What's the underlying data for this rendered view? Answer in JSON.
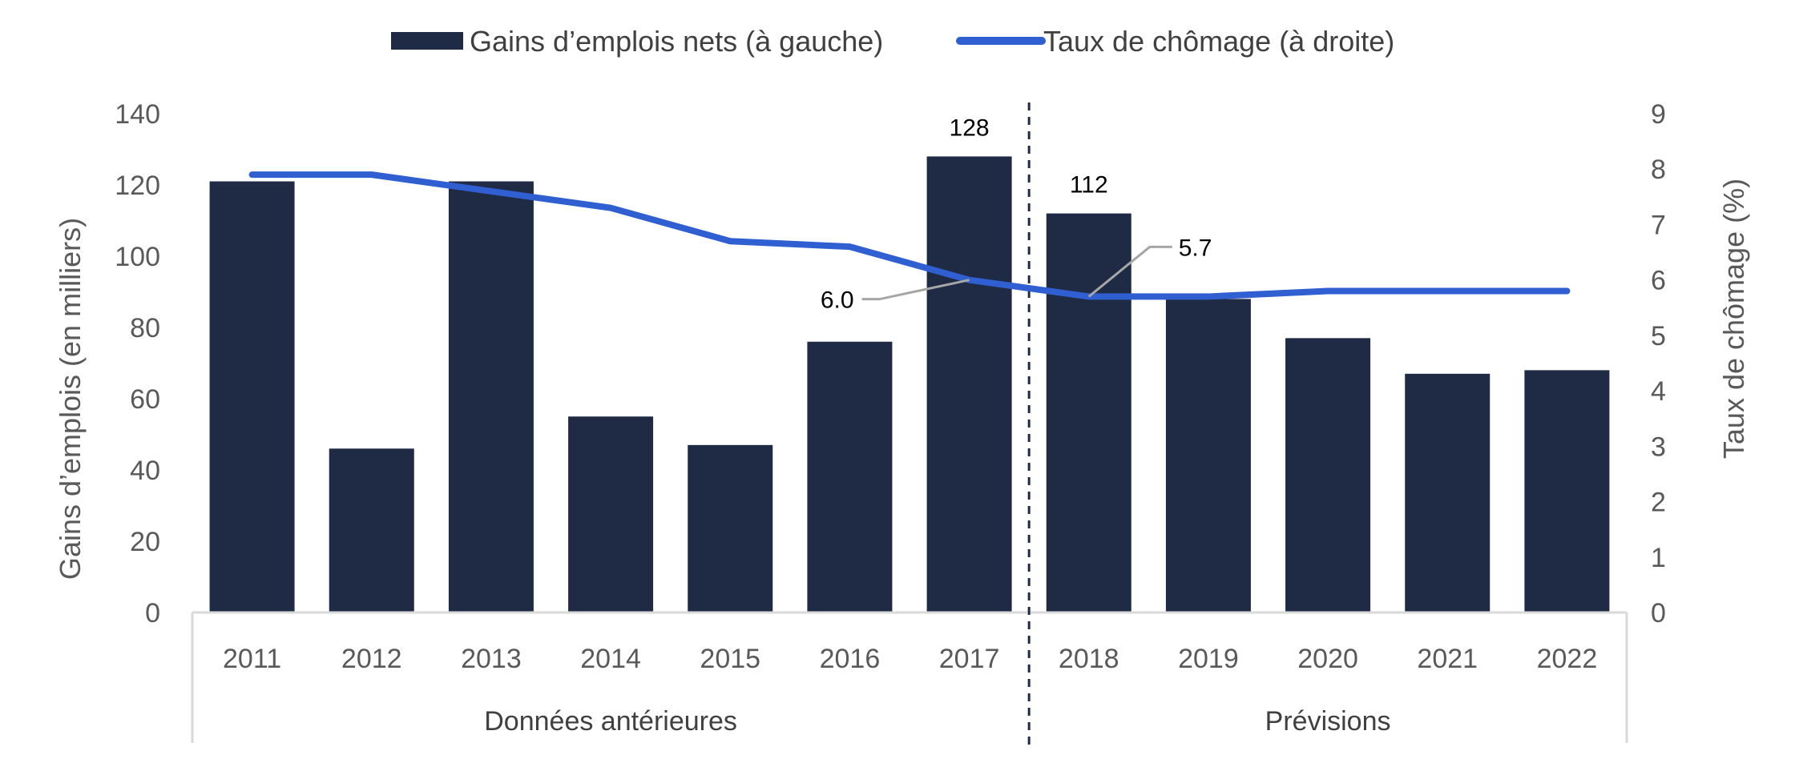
{
  "chart_data": {
    "type": "bar+line",
    "categories": [
      "2011",
      "2012",
      "2013",
      "2014",
      "2015",
      "2016",
      "2017",
      "2018",
      "2019",
      "2020",
      "2021",
      "2022"
    ],
    "groups": [
      {
        "label": "Données antérieures",
        "from": "2011",
        "to": "2017"
      },
      {
        "label": "Prévisions",
        "from": "2018",
        "to": "2022"
      }
    ],
    "series": [
      {
        "name": "Gains d’emplois nets (à gauche)",
        "type": "bar",
        "axis": "left",
        "color": "#1f2a44",
        "values": [
          121,
          46,
          121,
          55,
          47,
          76,
          128,
          112,
          88,
          77,
          67,
          68
        ]
      },
      {
        "name": "Taux de chômage (à droite)",
        "type": "line",
        "axis": "right",
        "color": "#2f5fd0",
        "values": [
          7.9,
          7.9,
          7.6,
          7.3,
          6.7,
          6.6,
          6.0,
          5.7,
          5.7,
          5.8,
          5.8,
          5.8
        ]
      }
    ],
    "data_labels": [
      {
        "series": 0,
        "category": "2017",
        "text": "128"
      },
      {
        "series": 0,
        "category": "2018",
        "text": "112"
      },
      {
        "series": 1,
        "category": "2017",
        "text": "6.0"
      },
      {
        "series": 1,
        "category": "2018",
        "text": "5.7"
      }
    ],
    "ylabel_left": "Gains d’emplois (en milliers)",
    "ylabel_right": "Taux de chômage (%)",
    "ylim_left": [
      0,
      140
    ],
    "yticks_left": [
      "0",
      "20",
      "40",
      "60",
      "80",
      "100",
      "120",
      "140"
    ],
    "ylim_right": [
      0,
      9
    ],
    "yticks_right": [
      "0",
      "1",
      "2",
      "3",
      "4",
      "5",
      "6",
      "7",
      "8",
      "9"
    ],
    "divider_between": [
      "2017",
      "2018"
    ],
    "legend_position": "top-center",
    "grid": false
  }
}
